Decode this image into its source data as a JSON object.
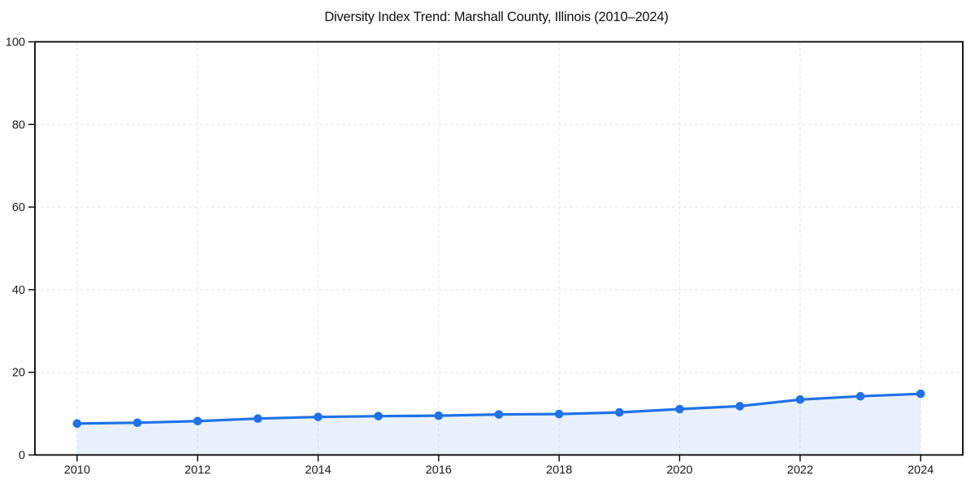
{
  "chart_data": {
    "type": "area",
    "title": "Diversity Index Trend: Marshall County, Illinois (2010–2024)",
    "xlabel": "",
    "ylabel": "",
    "x": [
      2010,
      2011,
      2012,
      2013,
      2014,
      2015,
      2016,
      2017,
      2018,
      2019,
      2020,
      2021,
      2022,
      2023,
      2024
    ],
    "values": [
      7.6,
      7.8,
      8.2,
      8.8,
      9.2,
      9.4,
      9.5,
      9.8,
      9.9,
      10.3,
      11.1,
      11.8,
      13.4,
      14.2,
      14.8
    ],
    "xticks": [
      2010,
      2012,
      2014,
      2016,
      2018,
      2020,
      2022,
      2024
    ],
    "yticks": [
      0,
      20,
      40,
      60,
      80,
      100
    ],
    "xlim": [
      2009.3,
      2024.7
    ],
    "ylim": [
      0,
      100
    ],
    "grid": true,
    "grid_style": "dashed",
    "legend": false,
    "marker": "circle",
    "colors": {
      "line": "#1f72e6",
      "fill": "rgba(31,114,230,0.10)",
      "grid": "#e5e5e5",
      "axis": "#000000",
      "text": "#1a1a1a",
      "background": "#ffffff"
    }
  }
}
